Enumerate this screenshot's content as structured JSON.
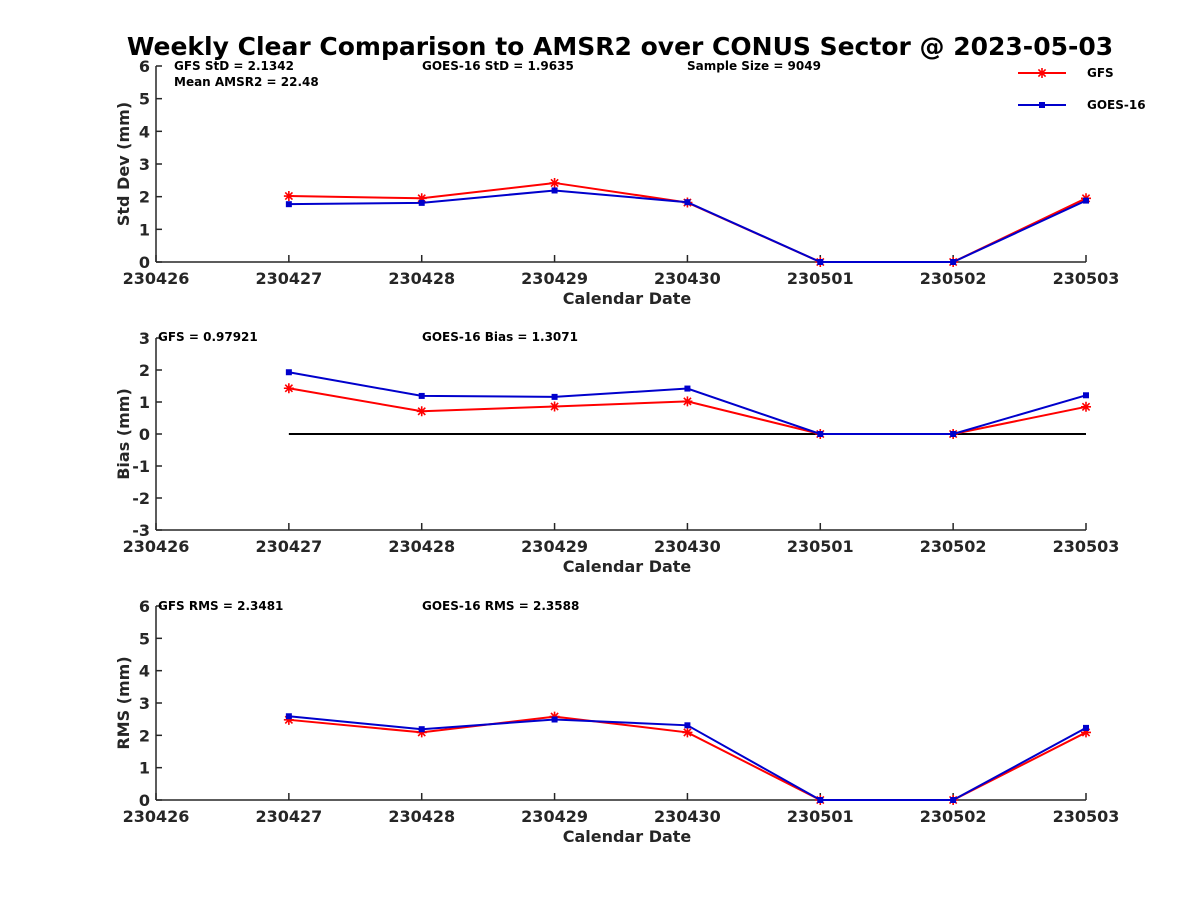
{
  "title": "Weekly Clear Comparison to AMSR2 over CONUS Sector @ 2023-05-03",
  "colors": {
    "gfs": "#ff0000",
    "goes": "#0000cc",
    "zero_line": "#000000",
    "axis": "#262626"
  },
  "legend": [
    {
      "name": "GFS",
      "color": "#ff0000",
      "marker": "asterisk"
    },
    {
      "name": "GOES-16",
      "color": "#0000cc",
      "marker": "square"
    }
  ],
  "chart_data": [
    {
      "type": "line",
      "xlabel": "Calendar Date",
      "ylabel": "Std Dev (mm)",
      "categories": [
        "230426",
        "230427",
        "230428",
        "230429",
        "230430",
        "230501",
        "230502",
        "230503"
      ],
      "ylim": [
        0,
        6
      ],
      "yticks": [
        0,
        1,
        2,
        3,
        4,
        5,
        6
      ],
      "grid": false,
      "legend_position": "top-right",
      "annotations": [
        "GFS StD = 2.1342",
        "Mean AMSR2 = 22.48",
        "GOES-16 StD = 1.9635",
        "Sample Size = 9049"
      ],
      "series": [
        {
          "name": "GFS",
          "x": [
            "230427",
            "230428",
            "230429",
            "230430",
            "230501",
            "230502",
            "230503"
          ],
          "values": [
            2.02,
            1.95,
            2.42,
            1.82,
            0.0,
            0.0,
            1.95
          ]
        },
        {
          "name": "GOES-16",
          "x": [
            "230427",
            "230428",
            "230429",
            "230430",
            "230501",
            "230502",
            "230503"
          ],
          "values": [
            1.77,
            1.81,
            2.19,
            1.83,
            0.0,
            0.0,
            1.88
          ]
        }
      ]
    },
    {
      "type": "line",
      "xlabel": "Calendar Date",
      "ylabel": "Bias (mm)",
      "categories": [
        "230426",
        "230427",
        "230428",
        "230429",
        "230430",
        "230501",
        "230502",
        "230503"
      ],
      "ylim": [
        -3,
        3
      ],
      "yticks": [
        -3,
        -2,
        -1,
        0,
        1,
        2,
        3
      ],
      "grid": false,
      "annotations": [
        "GFS = 0.97921",
        "GOES-16 Bias  = 1.3071"
      ],
      "reference_line": 0,
      "series": [
        {
          "name": "GFS",
          "x": [
            "230427",
            "230428",
            "230429",
            "230430",
            "230501",
            "230502",
            "230503"
          ],
          "values": [
            1.43,
            0.71,
            0.86,
            1.02,
            0.0,
            0.0,
            0.85
          ]
        },
        {
          "name": "GOES-16",
          "x": [
            "230427",
            "230428",
            "230429",
            "230430",
            "230501",
            "230502",
            "230503"
          ],
          "values": [
            1.93,
            1.19,
            1.16,
            1.42,
            0.0,
            0.0,
            1.21
          ]
        }
      ]
    },
    {
      "type": "line",
      "xlabel": "Calendar Date",
      "ylabel": "RMS (mm)",
      "categories": [
        "230426",
        "230427",
        "230428",
        "230429",
        "230430",
        "230501",
        "230502",
        "230503"
      ],
      "ylim": [
        0,
        6
      ],
      "yticks": [
        0,
        1,
        2,
        3,
        4,
        5,
        6
      ],
      "grid": false,
      "annotations": [
        "GFS RMS = 2.3481",
        "GOES-16 RMS = 2.3588"
      ],
      "series": [
        {
          "name": "GFS",
          "x": [
            "230427",
            "230428",
            "230429",
            "230430",
            "230501",
            "230502",
            "230503"
          ],
          "values": [
            2.48,
            2.09,
            2.58,
            2.09,
            0.0,
            0.0,
            2.09
          ]
        },
        {
          "name": "GOES-16",
          "x": [
            "230427",
            "230428",
            "230429",
            "230430",
            "230501",
            "230502",
            "230503"
          ],
          "values": [
            2.59,
            2.19,
            2.49,
            2.31,
            0.0,
            0.0,
            2.23
          ]
        }
      ]
    }
  ]
}
